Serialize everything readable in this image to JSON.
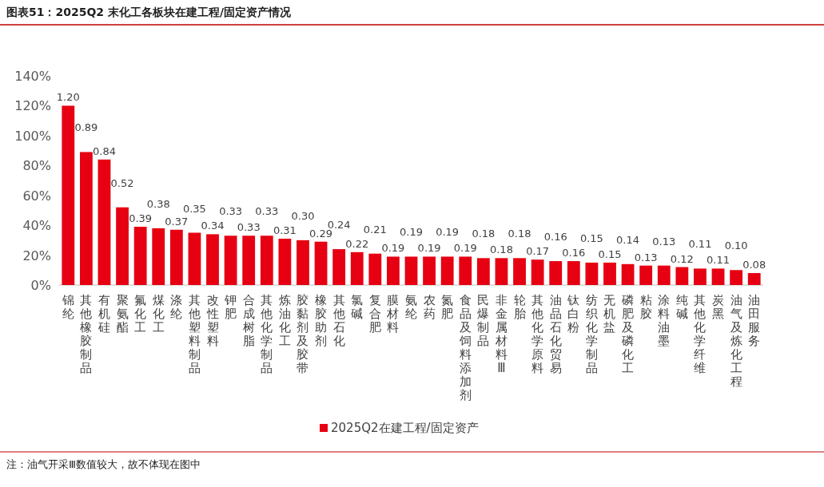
{
  "chart_data": {
    "type": "bar",
    "title": "图表51：2025Q2 末化工各板块在建工程/固定资产情况",
    "categories": [
      "锦纶",
      "其他橡胶制品",
      "有机硅",
      "聚氨酯",
      "氟化工",
      "煤化工",
      "涤纶",
      "其他塑料制品",
      "改性塑料",
      "钾肥",
      "合成树脂",
      "其他化学制品",
      "炼油化工",
      "胶黏剂及胶带",
      "橡胶助剂",
      "其他石化",
      "氯碱",
      "复合肥",
      "膜材料",
      "氨纶",
      "农药",
      "氮肥",
      "食品及饲料添加剂",
      "民爆制品",
      "非金属材料Ⅲ",
      "轮胎",
      "其他化学原料",
      "油品石化贸易",
      "钛白粉",
      "纺织化学制品",
      "无机盐",
      "磷肥及磷化工",
      "粘胶",
      "涂料油墨",
      "纯碱",
      "其他化学纤维",
      "炭黑",
      "油气及炼化工程",
      "油田服务"
    ],
    "series": [
      {
        "name": "2025Q2在建工程/固定资产",
        "color": "#e60012",
        "values": [
          1.2,
          0.89,
          0.84,
          0.52,
          0.39,
          0.38,
          0.37,
          0.35,
          0.34,
          0.33,
          0.33,
          0.33,
          0.31,
          0.3,
          0.29,
          0.24,
          0.22,
          0.21,
          0.19,
          0.19,
          0.19,
          0.19,
          0.19,
          0.18,
          0.18,
          0.18,
          0.17,
          0.16,
          0.16,
          0.15,
          0.15,
          0.14,
          0.13,
          0.13,
          0.12,
          0.11,
          0.11,
          0.1,
          0.08
        ],
        "value_labels": [
          "1.20",
          "0.89",
          "0.84",
          "0.52",
          "0.39",
          "0.38",
          "0.37",
          "0.35",
          "0.34",
          "0.33",
          "0.33",
          "0.33",
          "0.31",
          "0.30",
          "0.29",
          "0.24",
          "0.22",
          "0.21",
          "0.19",
          "0.19",
          "0.19",
          "0.19",
          "0.19",
          "0.18",
          "0.18",
          "0.18",
          "0.17",
          "0.16",
          "0.16",
          "0.15",
          "0.15",
          "0.14",
          "0.13",
          "0.13",
          "0.12",
          "0.11",
          "0.11",
          "0.10",
          "0.08"
        ]
      }
    ],
    "ylim": [
      0,
      1.4
    ],
    "yticks": [
      {
        "value": 0,
        "label": "0%"
      },
      {
        "value": 0.2,
        "label": "20%"
      },
      {
        "value": 0.4,
        "label": "40%"
      },
      {
        "value": 0.6,
        "label": "60%"
      },
      {
        "value": 0.8,
        "label": "80%"
      },
      {
        "value": 1.0,
        "label": "100%"
      },
      {
        "value": 1.2,
        "label": "120%"
      },
      {
        "value": 1.4,
        "label": "140%"
      }
    ],
    "legend": "bottom",
    "annotations": [
      "注：油气开采Ⅲ数值较大，故不体现在图中"
    ]
  }
}
